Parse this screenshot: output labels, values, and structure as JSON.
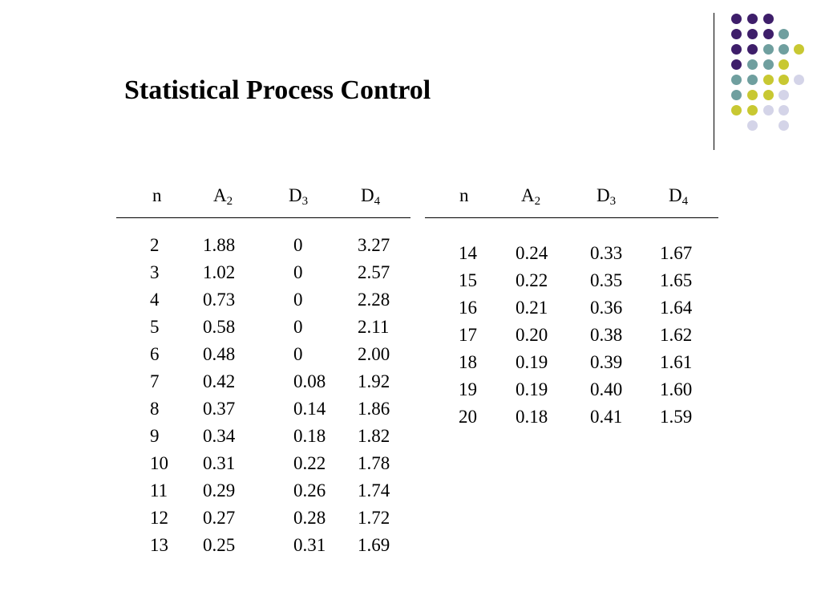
{
  "slide": {
    "title": "Statistical Process Control"
  },
  "decoration": {
    "dot_colors": {
      "purple": "#3e1e6a",
      "teal": "#6f9f9f",
      "yellow": "#c8c832",
      "lavender": "#d4d4e8"
    }
  },
  "table": {
    "headers": [
      {
        "main": "n",
        "sub": ""
      },
      {
        "main": "A",
        "sub": "2"
      },
      {
        "main": "D",
        "sub": "3"
      },
      {
        "main": "D",
        "sub": "4"
      }
    ],
    "left_rows": [
      [
        "2",
        "1.88",
        "0",
        "3.27"
      ],
      [
        "3",
        "1.02",
        "0",
        "2.57"
      ],
      [
        "4",
        "0.73",
        "0",
        "2.28"
      ],
      [
        "5",
        "0.58",
        "0",
        "2.11"
      ],
      [
        "6",
        "0.48",
        "0",
        "2.00"
      ],
      [
        "7",
        "0.42",
        "0.08",
        "1.92"
      ],
      [
        "8",
        "0.37",
        "0.14",
        "1.86"
      ],
      [
        "9",
        "0.34",
        "0.18",
        "1.82"
      ],
      [
        "10",
        "0.31",
        "0.22",
        "1.78"
      ],
      [
        "11",
        "0.29",
        "0.26",
        "1.74"
      ],
      [
        "12",
        "0.27",
        "0.28",
        "1.72"
      ],
      [
        "13",
        "0.25",
        "0.31",
        "1.69"
      ]
    ],
    "right_rows": [
      [
        "14",
        "0.24",
        "0.33",
        "1.67"
      ],
      [
        "15",
        "0.22",
        "0.35",
        "1.65"
      ],
      [
        "16",
        "0.21",
        "0.36",
        "1.64"
      ],
      [
        "17",
        "0.20",
        "0.38",
        "1.62"
      ],
      [
        "18",
        "0.19",
        "0.39",
        "1.61"
      ],
      [
        "19",
        "0.19",
        "0.40",
        "1.60"
      ],
      [
        "20",
        "0.18",
        "0.41",
        "1.59"
      ]
    ]
  }
}
